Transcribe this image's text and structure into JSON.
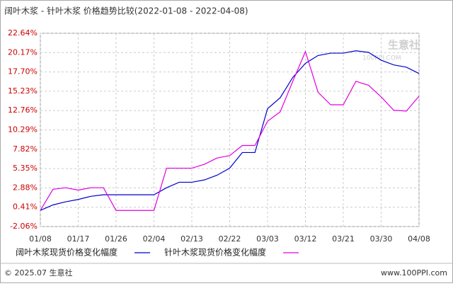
{
  "chart_data": {
    "type": "line",
    "title": "阔叶木浆 - 针叶木浆 价格趋势比较(2022-01-08 - 2022-04-08)",
    "watermark": [
      "生意社",
      "100PPI.COM"
    ],
    "footer_left": "© 2025.07 生意社",
    "footer_right": "www.100PPI.com",
    "categories": [
      "01/08",
      null,
      null,
      "01/17",
      null,
      null,
      "01/26",
      null,
      null,
      "02/04",
      null,
      null,
      "02/13",
      null,
      null,
      "02/22",
      null,
      null,
      "03/03",
      null,
      null,
      "03/12",
      null,
      null,
      "03/21",
      null,
      null,
      "03/30",
      null,
      null,
      "04/08"
    ],
    "series": [
      {
        "name": "阔叶木浆现货价格变化幅度",
        "color": "#0000cc",
        "values": [
          0.0,
          0.7,
          1.1,
          1.4,
          1.8,
          2.0,
          2.0,
          2.0,
          2.0,
          2.0,
          2.9,
          3.6,
          3.6,
          3.9,
          4.5,
          5.4,
          7.4,
          7.4,
          13.0,
          14.4,
          17.0,
          18.8,
          19.8,
          20.1,
          20.1,
          20.4,
          20.2,
          19.2,
          18.6,
          18.3,
          17.5
        ]
      },
      {
        "name": "针叶木浆现货价格变化幅度",
        "color": "#e000e0",
        "values": [
          0.0,
          2.7,
          2.9,
          2.6,
          2.9,
          2.9,
          0.0,
          0.0,
          0.0,
          0.0,
          5.4,
          5.4,
          5.4,
          5.9,
          6.7,
          7.0,
          8.3,
          8.3,
          11.4,
          12.6,
          16.5,
          20.3,
          15.1,
          13.5,
          13.5,
          16.5,
          16.0,
          14.5,
          12.8,
          12.7,
          14.6
        ]
      }
    ],
    "ylim": [
      -2.06,
      22.64
    ],
    "yticks": [
      {
        "value": -2.06,
        "label": "-2.06%"
      },
      {
        "value": 0.41,
        "label": "0.41%"
      },
      {
        "value": 2.88,
        "label": "2.88%"
      },
      {
        "value": 5.35,
        "label": "5.35%"
      },
      {
        "value": 7.82,
        "label": "7.82%"
      },
      {
        "value": 10.29,
        "label": "10.29%"
      },
      {
        "value": 12.76,
        "label": "12.76%"
      },
      {
        "value": 15.23,
        "label": "15.23%"
      },
      {
        "value": 17.7,
        "label": "17.70%"
      },
      {
        "value": 20.17,
        "label": "20.17%"
      },
      {
        "value": 22.64,
        "label": "22.64%"
      }
    ],
    "grid": true
  }
}
